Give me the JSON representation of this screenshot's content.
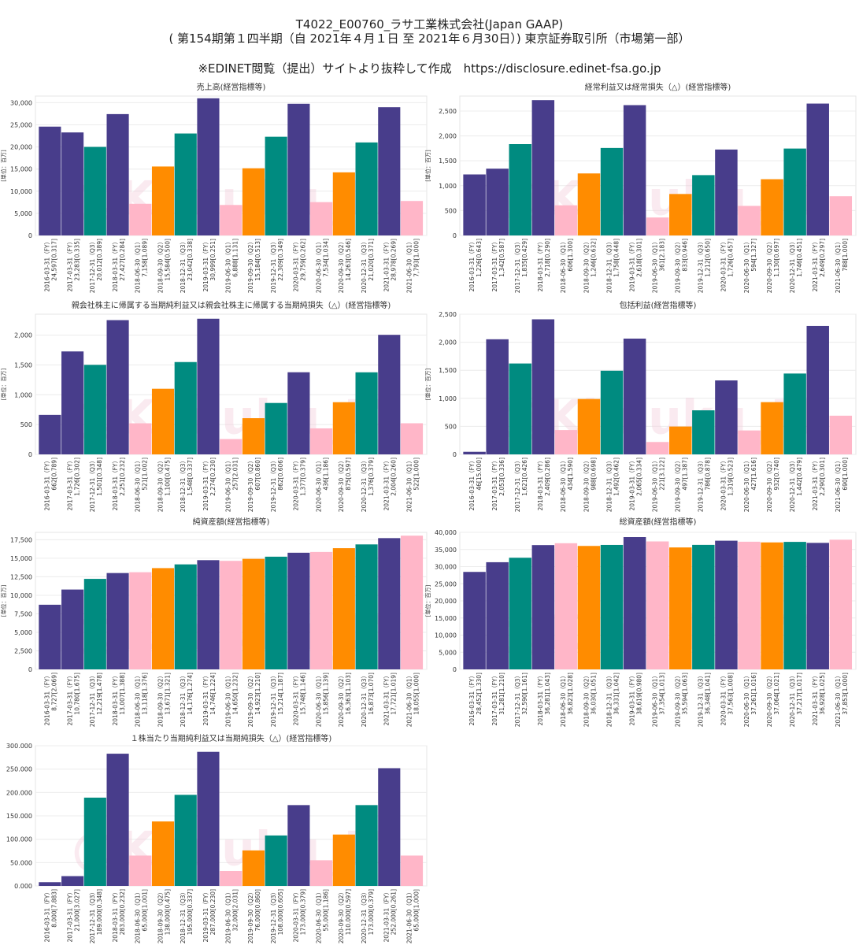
{
  "header": {
    "line1": "T4022_E00760_ラサ工業株式会社(Japan GAAP)",
    "line2": "( 第154期第１四半期（自 2021年４月１日 至 2021年６月30日）) 東京証券取引所（市場第一部）",
    "line3": "※EDINET閲覧（提出）サイトより抜粋して作成　https://disclosure.edinet-fsa.go.jp"
  },
  "watermark": "@Kinjuku_M",
  "colors": {
    "FY": "#483d8b",
    "Q1": "#ffb6c8",
    "Q2": "#ff8c00",
    "Q3": "#008b80"
  },
  "chart_data": [
    {
      "type": "bar",
      "title": "売上高(経営指標等)",
      "ylabel": "[単位：百万]",
      "ylim": [
        0,
        31500
      ],
      "yticks": [
        0,
        5000,
        10000,
        15000,
        20000,
        25000,
        30000
      ],
      "ytick_labels": [
        "0",
        "5,000",
        "10,000",
        "15,000",
        "20,000",
        "25,000",
        "30,000"
      ],
      "categories": [
        "2016-03-31（FY）",
        "2017-03-31（FY）",
        "2017-12-31（Q3）",
        "2018-03-31（FY）",
        "2018-06-30（Q1）",
        "2018-09-30（Q2）",
        "2018-12-31（Q3）",
        "2019-03-31（FY）",
        "2019-06-30（Q1）",
        "2019-09-30（Q2）",
        "2019-12-31（Q3）",
        "2020-03-31（FY）",
        "2020-06-30（Q1）",
        "2020-09-30（Q2）",
        "2020-12-31（Q3）",
        "2021-03-31（FY）",
        "2021-06-30（Q1）"
      ],
      "periods": [
        "FY",
        "FY",
        "Q3",
        "FY",
        "Q1",
        "Q2",
        "Q3",
        "FY",
        "Q1",
        "Q2",
        "Q3",
        "FY",
        "Q1",
        "Q2",
        "Q3",
        "FY",
        "Q1"
      ],
      "values": [
        24597,
        23283,
        20012,
        27427,
        7158,
        15584,
        23042,
        30999,
        6888,
        15184,
        22309,
        29759,
        7534,
        14263,
        21020,
        28978,
        7793
      ],
      "value_labels": [
        "24,597[0.317]",
        "23,283[0.335]",
        "20,012[0.389]",
        "27,427[0.284]",
        "7,158[1.089]",
        "15,584[0.500]",
        "23,042[0.338]",
        "30,999[0.251]",
        "6,888[1.131]",
        "15,184[0.513]",
        "22,309[0.349]",
        "29,759[0.262]",
        "7,534[1.034]",
        "14,263[0.546]",
        "21,020[0.371]",
        "28,978[0.269]",
        "7,793[1.000]"
      ]
    },
    {
      "type": "bar",
      "title": "経常利益又は経常損失（△）(経営指標等)",
      "ylabel": "[単位：百万]",
      "ylim": [
        0,
        2800
      ],
      "yticks": [
        0,
        500,
        1000,
        1500,
        2000,
        2500
      ],
      "ytick_labels": [
        "0",
        "500",
        "1,000",
        "1,500",
        "2,000",
        "2,500"
      ],
      "categories": [
        "2016-03-31（FY）",
        "2017-03-31（FY）",
        "2017-12-31（Q3）",
        "2018-03-31（FY）",
        "2018-06-30（Q1）",
        "2018-09-30（Q2）",
        "2018-12-31（Q3）",
        "2019-03-31（FY）",
        "2019-06-30（Q1）",
        "2019-09-30（Q2）",
        "2019-12-31（Q3）",
        "2020-03-31（FY）",
        "2020-06-30（Q1）",
        "2020-09-30（Q2）",
        "2020-12-31（Q3）",
        "2021-03-31（FY）",
        "2021-06-30（Q1）"
      ],
      "periods": [
        "FY",
        "FY",
        "Q3",
        "FY",
        "Q1",
        "Q2",
        "Q3",
        "FY",
        "Q1",
        "Q2",
        "Q3",
        "FY",
        "Q1",
        "Q2",
        "Q3",
        "FY",
        "Q1"
      ],
      "values": [
        1226,
        1342,
        1835,
        2718,
        606,
        1246,
        1758,
        2618,
        361,
        833,
        1212,
        1726,
        594,
        1130,
        1746,
        2649,
        788
      ],
      "value_labels": [
        "1,226[0.643]",
        "1,342[0.587]",
        "1,835[0.429]",
        "2,718[0.290]",
        "606[1.300]",
        "1,246[0.632]",
        "1,758[0.448]",
        "2,618[0.301]",
        "361[2.183]",
        "833[0.946]",
        "1,212[0.650]",
        "1,726[0.457]",
        "594[1.327]",
        "1,130[0.697]",
        "1,746[0.451]",
        "2,649[0.297]",
        "788[1.000]"
      ]
    },
    {
      "type": "bar",
      "title": "親会社株主に帰属する当期純利益又は親会社株主に帰属する当期純損失（△）(経営指標等)",
      "ylabel": "[単位：百万]",
      "ylim": [
        0,
        2350
      ],
      "yticks": [
        0,
        500,
        1000,
        1500,
        2000
      ],
      "ytick_labels": [
        "0",
        "500",
        "1,000",
        "1,500",
        "2,000"
      ],
      "categories": [
        "2016-03-31（FY）",
        "2017-03-31（FY）",
        "2017-12-31（Q3）",
        "2018-03-31（FY）",
        "2018-06-30（Q1）",
        "2018-09-30（Q2）",
        "2018-12-31（Q3）",
        "2019-03-31（FY）",
        "2019-06-30（Q1）",
        "2019-09-30（Q2）",
        "2019-12-31（Q3）",
        "2020-03-31（FY）",
        "2020-06-30（Q1）",
        "2020-09-30（Q2）",
        "2020-12-31（Q3）",
        "2021-03-31（FY）",
        "2021-06-30（Q1）"
      ],
      "periods": [
        "FY",
        "FY",
        "Q3",
        "FY",
        "Q1",
        "Q2",
        "Q3",
        "FY",
        "Q1",
        "Q2",
        "Q3",
        "FY",
        "Q1",
        "Q2",
        "Q3",
        "FY",
        "Q1"
      ],
      "values": [
        662,
        1726,
        1501,
        2251,
        521,
        1100,
        1548,
        2274,
        257,
        607,
        862,
        1377,
        436,
        875,
        1376,
        2004,
        522
      ],
      "value_labels": [
        "662[0.789]",
        "1,726[0.302]",
        "1,501[0.348]",
        "2,251[0.232]",
        "521[1.002]",
        "1,100[0.475]",
        "1,548[0.337]",
        "2,274[0.230]",
        "257[2.031]",
        "607[0.860]",
        "862[0.606]",
        "1,377[0.379]",
        "436[1.186]",
        "875[0.597]",
        "1,376[0.379]",
        "2,004[0.260]",
        "522[1.000]"
      ]
    },
    {
      "type": "bar",
      "title": "包括利益(経営指標等)",
      "ylabel": "[単位：百万]",
      "ylim": [
        0,
        2500
      ],
      "yticks": [
        0,
        500,
        1000,
        1500,
        2000,
        2500
      ],
      "ytick_labels": [
        "0",
        "500",
        "1,000",
        "1,500",
        "2,000",
        "2,500"
      ],
      "categories": [
        "2016-03-31（FY）",
        "2017-03-31（FY）",
        "2017-12-31（Q3）",
        "2018-03-31（FY）",
        "2018-06-30（Q1）",
        "2018-09-30（Q2）",
        "2018-12-31（Q3）",
        "2019-03-31（FY）",
        "2019-06-30（Q1）",
        "2019-09-30（Q2）",
        "2019-12-31（Q3）",
        "2020-03-31（FY）",
        "2020-06-30（Q1）",
        "2020-09-30（Q2）",
        "2020-12-31（Q3）",
        "2021-03-31（FY）",
        "2021-06-30（Q1）"
      ],
      "periods": [
        "FY",
        "FY",
        "Q3",
        "FY",
        "Q1",
        "Q2",
        "Q3",
        "FY",
        "Q1",
        "Q2",
        "Q3",
        "FY",
        "Q1",
        "Q2",
        "Q3",
        "FY",
        "Q1"
      ],
      "values": [
        46,
        2053,
        1621,
        2409,
        434,
        988,
        1492,
        2065,
        221,
        497,
        786,
        1319,
        427,
        932,
        1442,
        2290,
        690
      ],
      "value_labels": [
        "46[15.000]",
        "2,053[0.336]",
        "1,621[0.426]",
        "2,409[0.286]",
        "434[1.590]",
        "988[0.698]",
        "1,492[0.462]",
        "2,065[0.334]",
        "221[3.122]",
        "497[1.387]",
        "786[0.878]",
        "1,319[0.523]",
        "427[1.616]",
        "932[0.740]",
        "1,442[0.479]",
        "2,290[0.301]",
        "690[1.000]"
      ]
    },
    {
      "type": "bar",
      "title": "純資産額(経営指標等)",
      "ylabel": "[単位：百万]",
      "ylim": [
        0,
        18500
      ],
      "yticks": [
        0,
        2500,
        5000,
        7500,
        10000,
        12500,
        15000,
        17500
      ],
      "ytick_labels": [
        "0",
        "2,500",
        "5,000",
        "7,500",
        "10,000",
        "12,500",
        "15,000",
        "17,500"
      ],
      "categories": [
        "2016-03-31（FY）",
        "2017-03-31（FY）",
        "2017-12-31（Q3）",
        "2018-03-31（FY）",
        "2018-06-30（Q1）",
        "2018-09-30（Q2）",
        "2018-12-31（Q3）",
        "2019-03-31（FY）",
        "2019-06-30（Q1）",
        "2019-09-30（Q2）",
        "2019-12-31（Q3）",
        "2020-03-31（FY）",
        "2020-06-30（Q1）",
        "2020-09-30（Q2）",
        "2020-12-31（Q3）",
        "2021-03-31（FY）",
        "2021-06-30（Q1）"
      ],
      "periods": [
        "FY",
        "FY",
        "Q3",
        "FY",
        "Q1",
        "Q2",
        "Q3",
        "FY",
        "Q1",
        "Q2",
        "Q3",
        "FY",
        "Q1",
        "Q2",
        "Q3",
        "FY",
        "Q1"
      ],
      "values": [
        8727,
        10780,
        12219,
        13007,
        13118,
        13671,
        14176,
        14746,
        14650,
        14923,
        15214,
        15748,
        15856,
        16363,
        16873,
        17721,
        18055
      ],
      "value_labels": [
        "8,727[2.069]",
        "10,780[1.675]",
        "12,219[1.478]",
        "13,007[1.388]",
        "13,118[1.376]",
        "13,671[1.321]",
        "14,176[1.274]",
        "14,746[1.224]",
        "14,650[1.232]",
        "14,923[1.210]",
        "15,214[1.187]",
        "15,748[1.146]",
        "15,856[1.139]",
        "16,363[1.103]",
        "16,873[1.070]",
        "17,721[1.019]",
        "18,055[1.000]"
      ]
    },
    {
      "type": "bar",
      "title": "総資産額(経営指標等)",
      "ylabel": "[単位：百万]",
      "ylim": [
        0,
        40000
      ],
      "yticks": [
        0,
        5000,
        10000,
        15000,
        20000,
        25000,
        30000,
        35000,
        40000
      ],
      "ytick_labels": [
        "0",
        "5,000",
        "10,000",
        "15,000",
        "20,000",
        "25,000",
        "30,000",
        "35,000",
        "40,000"
      ],
      "categories": [
        "2016-03-31（FY）",
        "2017-03-31（FY）",
        "2017-12-31（Q3）",
        "2018-03-31（FY）",
        "2018-06-30（Q1）",
        "2018-09-30（Q2）",
        "2018-12-31（Q3）",
        "2019-03-31（FY）",
        "2019-06-30（Q1）",
        "2019-09-30（Q2）",
        "2019-12-31（Q3）",
        "2020-03-31（FY）",
        "2020-06-30（Q1）",
        "2020-09-30（Q2）",
        "2020-12-31（Q3）",
        "2021-03-31（FY）",
        "2021-06-30（Q1）"
      ],
      "periods": [
        "FY",
        "FY",
        "Q3",
        "FY",
        "Q1",
        "Q2",
        "Q3",
        "FY",
        "Q1",
        "Q2",
        "Q3",
        "FY",
        "Q1",
        "Q2",
        "Q3",
        "FY",
        "Q1"
      ],
      "values": [
        28452,
        31281,
        32590,
        36281,
        36823,
        36030,
        36331,
        38619,
        37354,
        35594,
        36348,
        37563,
        37261,
        37064,
        37217,
        36928,
        37853
      ],
      "value_labels": [
        "28,452[1.330]",
        "31,281[1.210]",
        "32,590[1.161]",
        "36,281[1.043]",
        "36,823[1.028]",
        "36,030[1.051]",
        "36,331[1.042]",
        "38,619[0.980]",
        "37,354[1.013]",
        "35,594[1.063]",
        "36,348[1.041]",
        "37,563[1.008]",
        "37,261[1.016]",
        "37,064[1.021]",
        "37,217[1.017]",
        "36,928[1.025]",
        "37,853[1.000]"
      ]
    },
    {
      "type": "bar",
      "title": "１株当たり当期純利益又は当期純損失（△）(経営指標等)",
      "ylabel": "",
      "ylim": [
        0,
        300000
      ],
      "yticks": [
        0,
        50000,
        100000,
        150000,
        200000,
        250000,
        300000
      ],
      "ytick_labels": [
        "0.000",
        "50.000",
        "100.000",
        "150.000",
        "200.000",
        "250.000",
        "300.000"
      ],
      "categories": [
        "2016-03-31（FY）",
        "2017-03-31（FY）",
        "2017-12-31（Q3）",
        "2018-03-31（FY）",
        "2018-06-30（Q1）",
        "2018-09-30（Q2）",
        "2018-12-31（Q3）",
        "2019-03-31（FY）",
        "2019-06-30（Q1）",
        "2019-09-30（Q2）",
        "2019-12-31（Q3）",
        "2020-03-31（FY）",
        "2020-06-30（Q1）",
        "2020-09-30（Q2）",
        "2020-12-31（Q3）",
        "2021-03-31（FY）",
        "2021-06-30（Q1）"
      ],
      "periods": [
        "FY",
        "FY",
        "Q3",
        "FY",
        "Q1",
        "Q2",
        "Q3",
        "FY",
        "Q1",
        "Q2",
        "Q3",
        "FY",
        "Q1",
        "Q2",
        "Q3",
        "FY",
        "Q1"
      ],
      "values": [
        8000,
        21000,
        189000,
        283000,
        65000,
        138000,
        195000,
        287000,
        32000,
        76000,
        108000,
        173000,
        55000,
        110000,
        173000,
        252000,
        65000
      ],
      "value_labels": [
        "8.000[7.883]",
        "21.000[3.027]",
        "189.000[0.348]",
        "283.000[0.232]",
        "65.000[1.001]",
        "138.000[0.475]",
        "195.000[0.337]",
        "287.000[0.230]",
        "32.000[2.031]",
        "76.000[0.860]",
        "108.000[0.605]",
        "173.000[0.379]",
        "55.000[1.186]",
        "110.000[0.597]",
        "173.000[0.379]",
        "252.000[0.261]",
        "65.000[1.000]"
      ]
    }
  ]
}
